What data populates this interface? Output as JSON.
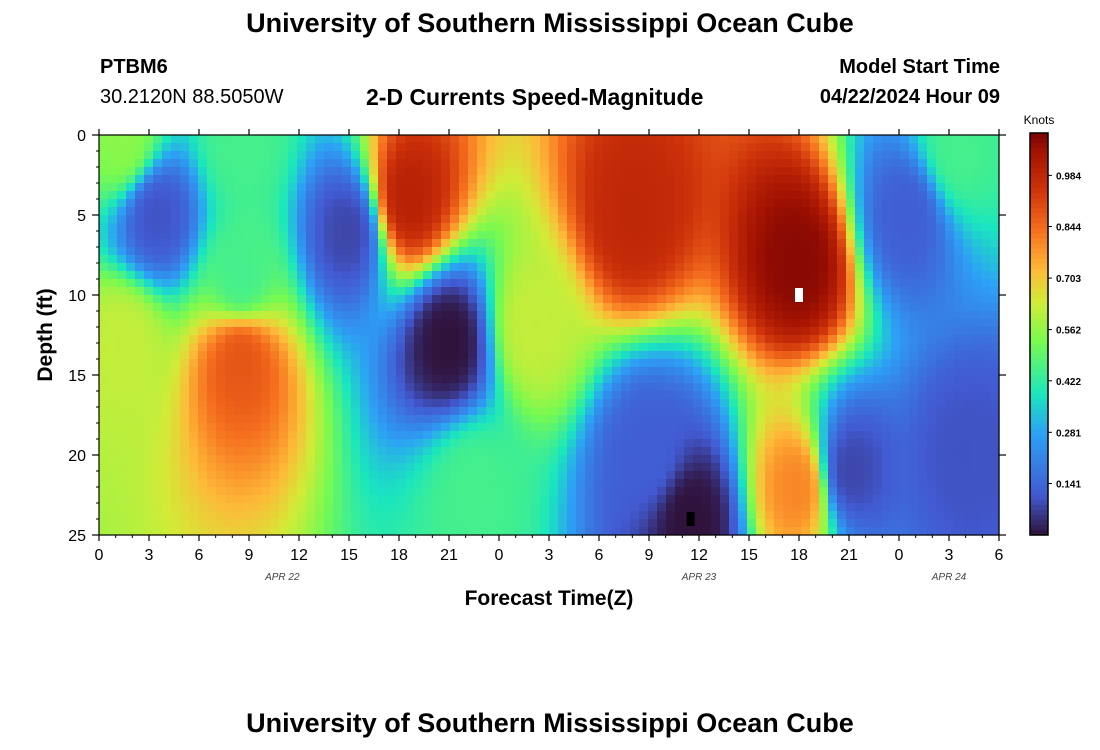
{
  "header": {
    "title": "University of Southern Mississippi Ocean Cube",
    "station": "PTBM6",
    "coords": "30.2120N  88.5050W",
    "subtitle": "2-D Currents Speed-Magnitude",
    "model_start_label": "Model Start Time",
    "model_start_value": "04/22/2024 Hour 09"
  },
  "footer": {
    "title": "University of Southern Mississippi Ocean Cube"
  },
  "chart_data": {
    "type": "heatmap",
    "title": "2-D Currents Speed-Magnitude",
    "xlabel": "Forecast Time(Z)",
    "ylabel": "Depth (ft)",
    "x_hours": [
      0,
      54
    ],
    "y_depth_ft": [
      0,
      25
    ],
    "xticks": [
      "0",
      "3",
      "6",
      "9",
      "12",
      "15",
      "18",
      "21",
      "0",
      "3",
      "6",
      "9",
      "12",
      "15",
      "18",
      "21",
      "0",
      "3",
      "6"
    ],
    "date_labels": [
      {
        "label": "APR 22",
        "hour": 11
      },
      {
        "label": "APR 23",
        "hour": 36
      },
      {
        "label": "APR 24",
        "hour": 51
      }
    ],
    "yticks": [
      "0",
      "5",
      "10",
      "15",
      "20",
      "25"
    ],
    "colorbar": {
      "title": "Knots",
      "ticks": [
        "0.141",
        "0.281",
        "0.422",
        "0.562",
        "0.703",
        "0.844",
        "0.984"
      ],
      "tick_values": [
        0.141,
        0.281,
        0.422,
        0.562,
        0.703,
        0.844,
        0.984
      ],
      "range": [
        0.0,
        1.1
      ]
    },
    "speed_features_knots": [
      {
        "hour": 1.5,
        "depth": 0.5,
        "speed": 0.55
      },
      {
        "hour": 3.5,
        "depth": 5,
        "speed": 0.1
      },
      {
        "hour": 1.5,
        "depth": 13,
        "speed": 0.62
      },
      {
        "hour": 8.5,
        "depth": 14,
        "speed": 0.88
      },
      {
        "hour": 8.5,
        "depth": 9,
        "speed": 0.45
      },
      {
        "hour": 8.5,
        "depth": 0.5,
        "speed": 0.45
      },
      {
        "hour": 15,
        "depth": 6,
        "speed": 0.08
      },
      {
        "hour": 18.5,
        "depth": 4,
        "speed": 1.0
      },
      {
        "hour": 21,
        "depth": 13,
        "speed": 0.0
      },
      {
        "hour": 22.5,
        "depth": 22,
        "speed": 0.45
      },
      {
        "hour": 26,
        "depth": 12,
        "speed": 0.62
      },
      {
        "hour": 32,
        "depth": 5,
        "speed": 0.98
      },
      {
        "hour": 33,
        "depth": 20,
        "speed": 0.12
      },
      {
        "hour": 35.5,
        "depth": 24,
        "speed": 0.0
      },
      {
        "hour": 42,
        "depth": 8,
        "speed": 1.08
      },
      {
        "hour": 42,
        "depth": 22,
        "speed": 0.8
      },
      {
        "hour": 45,
        "depth": 21,
        "speed": 0.08
      },
      {
        "hour": 48.5,
        "depth": 5,
        "speed": 0.12
      },
      {
        "hour": 51.5,
        "depth": 1,
        "speed": 0.45
      },
      {
        "hour": 52,
        "depth": 20,
        "speed": 0.1
      }
    ],
    "markers": [
      {
        "hour": 42,
        "depth": 10,
        "color": "#ffffff"
      },
      {
        "hour": 35.5,
        "depth": 24,
        "color": "#000000"
      }
    ]
  }
}
